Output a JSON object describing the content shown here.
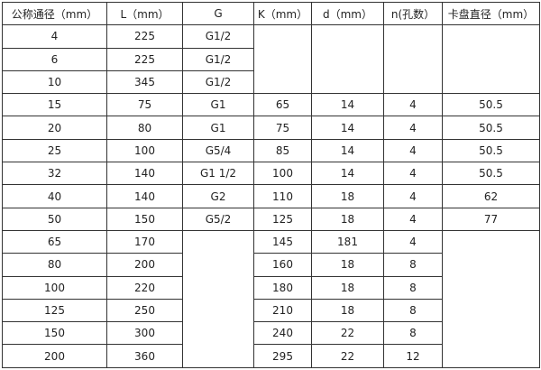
{
  "table": {
    "headers": [
      "公称通径（mm）",
      "L（mm）",
      "G",
      "K（mm）",
      "d（mm）",
      "n(孔数）",
      "卡盘直径（mm）"
    ],
    "rows": [
      [
        "4",
        "225",
        "G1/2",
        "",
        "",
        "",
        ""
      ],
      [
        "6",
        "225",
        "G1/2",
        null,
        null,
        null,
        null
      ],
      [
        "10",
        "345",
        "G1/2",
        null,
        null,
        null,
        null
      ],
      [
        "15",
        "75",
        "G1",
        "65",
        "14",
        "4",
        "50.5"
      ],
      [
        "20",
        "80",
        "G1",
        "75",
        "14",
        "4",
        "50.5"
      ],
      [
        "25",
        "100",
        "G5/4",
        "85",
        "14",
        "4",
        "50.5"
      ],
      [
        "32",
        "140",
        "G1  1/2",
        "100",
        "14",
        "4",
        "50.5"
      ],
      [
        "40",
        "140",
        "G2",
        "110",
        "18",
        "4",
        "62"
      ],
      [
        "50",
        "150",
        "G5/2",
        "125",
        "18",
        "4",
        "77"
      ],
      [
        "65",
        "170",
        "",
        "145",
        "181",
        "4",
        ""
      ],
      [
        "80",
        "200",
        null,
        "160",
        "18",
        "8",
        null
      ],
      [
        "100",
        "220",
        null,
        "180",
        "18",
        "8",
        null
      ],
      [
        "125",
        "250",
        null,
        "210",
        "18",
        "8",
        null
      ],
      [
        "150",
        "300",
        null,
        "240",
        "22",
        "8",
        null
      ],
      [
        "200",
        "360",
        null,
        "295",
        "22",
        "12",
        null
      ]
    ]
  }
}
